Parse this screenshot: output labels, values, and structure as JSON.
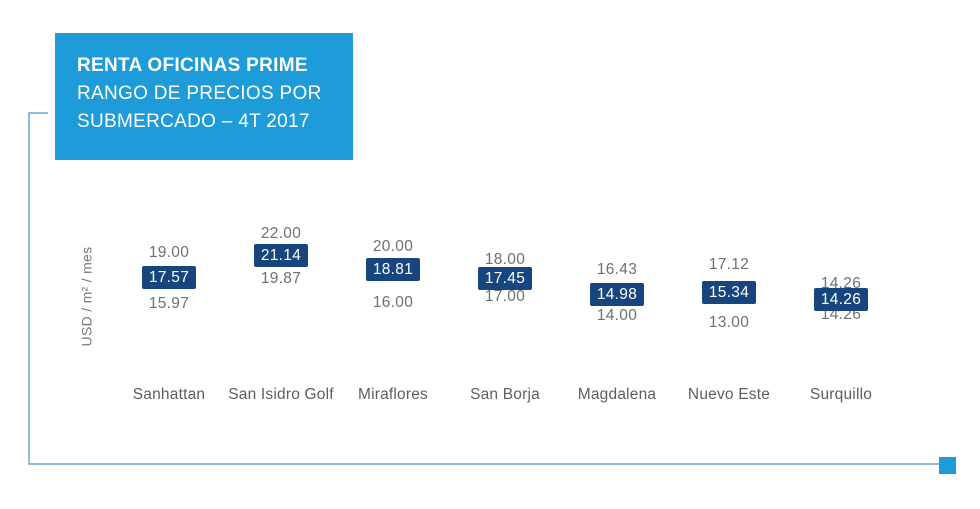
{
  "header": {
    "title_line1": "RENTA OFICINAS PRIME",
    "title_line2": "RANGO DE PRECIOS POR",
    "title_line3": "SUBMERCADO – 4T 2017",
    "bg_color": "#1d9cd9",
    "text_color": "#ffffff"
  },
  "chart_data": {
    "type": "bar",
    "subtype": "price-range-with-average-box",
    "title": "RENTA OFICINAS PRIME — RANGO DE PRECIOS POR SUBMERCADO – 4T 2017",
    "xlabel": "",
    "ylabel": "USD / m² / mes",
    "categories": [
      "Sanhattan",
      "San Isidro Golf",
      "Miraflores",
      "San Borja",
      "Magdalena",
      "Nuevo Este",
      "Surquillo"
    ],
    "series": [
      {
        "name": "Máximo",
        "values": [
          "19.00",
          "22.00",
          "20.00",
          "18.00",
          "16.43",
          "17.12",
          "14.26"
        ]
      },
      {
        "name": "Promedio",
        "values": [
          "17.57",
          "21.14",
          "18.81",
          "17.45",
          "14.98",
          "15.34",
          "14.26"
        ]
      },
      {
        "name": "Mínimo",
        "values": [
          "15.97",
          "19.87",
          "16.00",
          "17.00",
          "14.00",
          "13.00",
          "14.26"
        ]
      }
    ],
    "ylim": [
      13,
      22
    ],
    "grid": false,
    "legend": false,
    "colors": {
      "avg_box_bg": "#17457e",
      "avg_box_text": "#ffffff",
      "range_label_text": "#6f7074",
      "category_label_text": "#5d5e62"
    }
  },
  "decor": {
    "line_color": "#8fbcd9",
    "square_color": "#1d9cd9"
  }
}
